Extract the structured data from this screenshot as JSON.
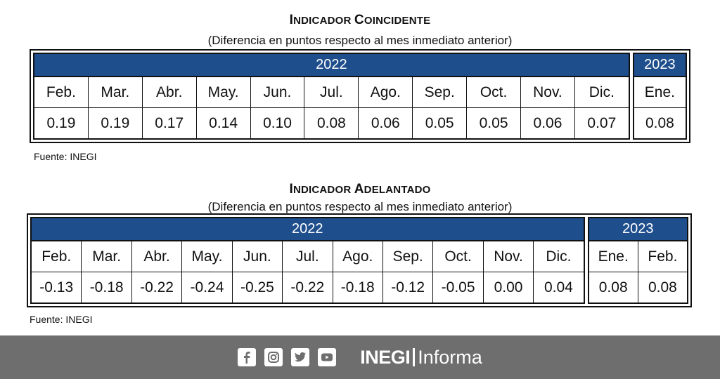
{
  "coincidente": {
    "title_first": "I",
    "title_first_rest": "NDICADOR ",
    "title_second": "C",
    "title_second_rest": "OINCIDENTE",
    "subtitle": "(Diferencia en puntos respecto al mes inmediato anterior)",
    "groups": [
      {
        "year": "2022",
        "months": [
          "Feb.",
          "Mar.",
          "Abr.",
          "May.",
          "Jun.",
          "Jul.",
          "Ago.",
          "Sep.",
          "Oct.",
          "Nov.",
          "Dic."
        ],
        "values": [
          "0.19",
          "0.19",
          "0.17",
          "0.14",
          "0.10",
          "0.08",
          "0.06",
          "0.05",
          "0.05",
          "0.06",
          "0.07"
        ]
      },
      {
        "year": "2023",
        "months": [
          "Ene."
        ],
        "values": [
          "0.08"
        ]
      }
    ],
    "source": "Fuente: INEGI"
  },
  "adelantado": {
    "title_first": "I",
    "title_first_rest": "NDICADOR ",
    "title_second": "A",
    "title_second_rest": "DELANTADO",
    "subtitle": "(Diferencia en puntos respecto al mes inmediato anterior)",
    "groups": [
      {
        "year": "2022",
        "months": [
          "Feb.",
          "Mar.",
          "Abr.",
          "May.",
          "Jun.",
          "Jul.",
          "Ago.",
          "Sep.",
          "Oct.",
          "Nov.",
          "Dic."
        ],
        "values": [
          "-0.13",
          "-0.18",
          "-0.22",
          "-0.24",
          "-0.25",
          "-0.22",
          "-0.18",
          "-0.12",
          "-0.05",
          "0.00",
          "0.04"
        ]
      },
      {
        "year": "2023",
        "months": [
          "Ene.",
          "Feb."
        ],
        "values": [
          "0.08",
          "0.08"
        ]
      }
    ],
    "source": "Fuente: INEGI"
  },
  "footer": {
    "icons": [
      "facebook-icon",
      "instagram-icon",
      "twitter-icon",
      "youtube-icon"
    ],
    "brand_bold": "INEGI",
    "brand_light": "Informa"
  },
  "colors": {
    "header_blue": "#1f4e8c",
    "footer_gray": "#6e6e6e"
  }
}
